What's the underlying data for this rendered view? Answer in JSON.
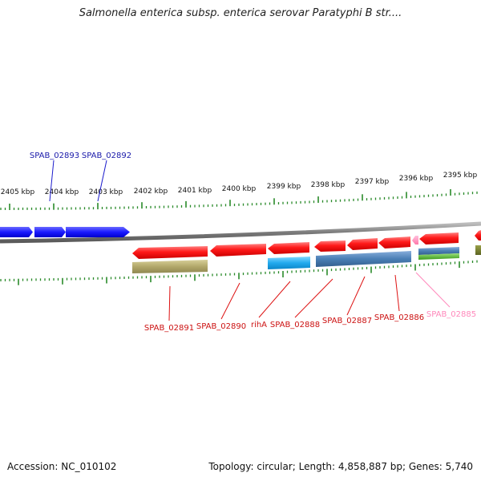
{
  "title": "Salmonella enterica subsp. enterica serovar Paratyphi B str....",
  "footer": {
    "accession": "Accession: NC_010102",
    "summary": "Topology: circular; Length: 4,858,887 bp; Genes: 5,740"
  },
  "scale_labels": [
    "2405 kbp",
    "2404 kbp",
    "2403 kbp",
    "2402 kbp",
    "2401 kbp",
    "2400 kbp",
    "2399 kbp",
    "2398 kbp",
    "2397 kbp",
    "2396 kbp",
    "2395 kbp"
  ],
  "forward_genes": [
    "SPAB_02893",
    "SPAB_02892"
  ],
  "reverse_genes": [
    "SPAB_02891",
    "SPAB_02890",
    "rihA",
    "SPAB_02888",
    "SPAB_02887",
    "SPAB_02886",
    "SPAB_02885"
  ],
  "colors": {
    "forward": "#1a1aff",
    "reverse": "#ff1a1a",
    "pseudo": "#ff88bb",
    "cds_feature": "#4a7fb5",
    "cds_feature_cyan": "#22aaee",
    "misc_feature": "#b2a86a",
    "rna_feature": "#44bb22",
    "ticks": "#2a8a2a",
    "backbone": "#8c8c8c"
  }
}
